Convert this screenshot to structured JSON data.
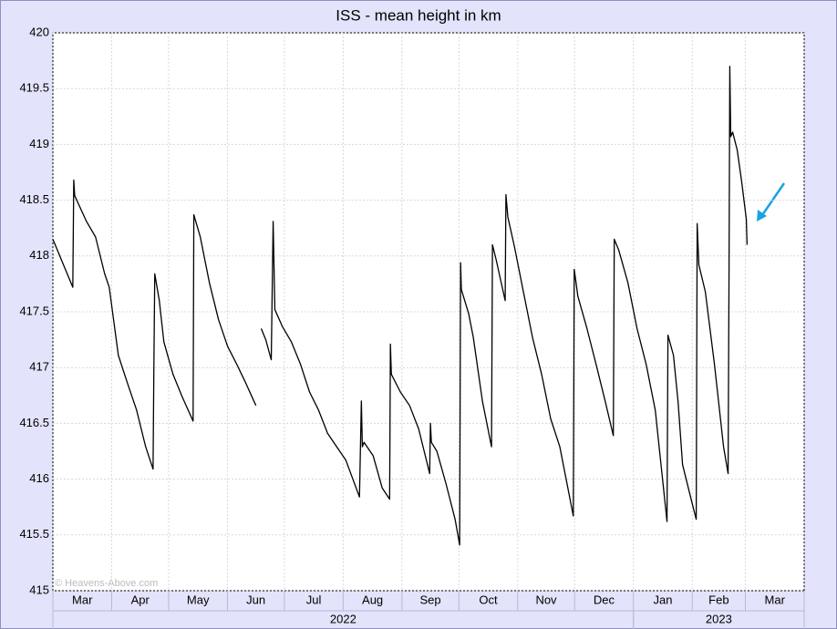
{
  "chart_data": {
    "type": "line",
    "title": "ISS - mean height in km",
    "credit": "© Heavens-Above.com",
    "color": "#000000",
    "ylim": [
      415,
      420
    ],
    "yticks": [
      415,
      415.5,
      416,
      416.5,
      417,
      417.5,
      418,
      418.5,
      419,
      419.5,
      420
    ],
    "xlim": [
      0,
      396
    ],
    "xticks": [
      0,
      31,
      61,
      92,
      122,
      153,
      184,
      214,
      245,
      275,
      306,
      337,
      365,
      396
    ],
    "x_period_labels": [
      "Mar",
      "Apr",
      "May",
      "Jun",
      "Jul",
      "Aug",
      "Sep",
      "Oct",
      "Nov",
      "Dec",
      "Jan",
      "Feb",
      "Mar"
    ],
    "x_years": [
      {
        "label": "2022",
        "start": 0,
        "end": 306
      },
      {
        "label": "2023",
        "start": 306,
        "end": 396
      }
    ],
    "grid": true,
    "x": [
      0,
      10.5,
      11,
      11.5,
      17.7,
      22.5,
      27.3,
      29.7,
      34.5,
      39.3,
      44.1,
      48.9,
      52.8,
      53.2,
      53.7,
      56.1,
      58.5,
      63.3,
      68.1,
      73.9,
      74.3,
      77.7,
      82.5,
      87.3,
      92.1,
      96.9,
      101.7,
      107,
      108,
      109.8,
      112.2,
      115.1,
      116.1,
      117,
      120.9,
      125.7,
      130.5,
      135.3,
      140,
      144.8,
      149.6,
      154.4,
      161.6,
      162.6,
      163.1,
      164,
      168.8,
      173.6,
      177.5,
      177.9,
      178.4,
      183.2,
      188,
      192.8,
      198.6,
      199,
      199.5,
      202.4,
      207.2,
      212,
      214.4,
      214.9,
      215.3,
      219.2,
      221.6,
      226.4,
      231.2,
      231.7,
      233.6,
      238.4,
      238.8,
      239.8,
      243.2,
      248,
      252.8,
      257.6,
      262.4,
      267.2,
      271.9,
      274.3,
      274.8,
      276.7,
      281.5,
      286.3,
      291.1,
      295.4,
      295.9,
      298.3,
      303.1,
      307.9,
      312.7,
      317.5,
      323.7,
      324.2,
      327.1,
      329.5,
      331.9,
      336.7,
      339.1,
      339.6,
      340.5,
      343.9,
      348.7,
      353.5,
      355.9,
      356.4,
      356.8,
      357.3,
      358.3,
      360.7,
      363.1,
      365.5,
      365.9
    ],
    "values": [
      418.15,
      417.72,
      418.68,
      418.54,
      418.31,
      418.17,
      417.84,
      417.72,
      417.11,
      416.86,
      416.62,
      416.29,
      416.09,
      416.94,
      417.84,
      417.6,
      417.23,
      416.94,
      416.74,
      416.52,
      418.37,
      418.17,
      417.76,
      417.43,
      417.19,
      417.03,
      416.86,
      416.66,
      null,
      417.35,
      417.25,
      417.07,
      418.31,
      417.52,
      417.37,
      417.23,
      417.03,
      416.78,
      416.62,
      416.41,
      416.29,
      416.17,
      415.84,
      416.7,
      416.29,
      416.33,
      416.21,
      415.92,
      415.82,
      417.21,
      416.94,
      416.78,
      416.66,
      416.45,
      416.05,
      416.5,
      416.33,
      416.25,
      415.96,
      415.64,
      415.41,
      417.94,
      417.7,
      417.48,
      417.27,
      416.7,
      416.29,
      418.1,
      417.97,
      417.6,
      418.55,
      418.35,
      418.09,
      417.68,
      417.27,
      416.94,
      416.54,
      416.29,
      415.88,
      415.67,
      417.88,
      417.64,
      417.35,
      417.03,
      416.7,
      416.39,
      418.15,
      418.05,
      417.76,
      417.35,
      417.03,
      416.62,
      415.62,
      417.29,
      417.11,
      416.7,
      416.13,
      415.8,
      415.64,
      418.29,
      417.92,
      417.68,
      417.03,
      416.29,
      416.05,
      417.88,
      419.7,
      419.07,
      419.11,
      418.95,
      418.66,
      418.33,
      418.1
    ]
  }
}
